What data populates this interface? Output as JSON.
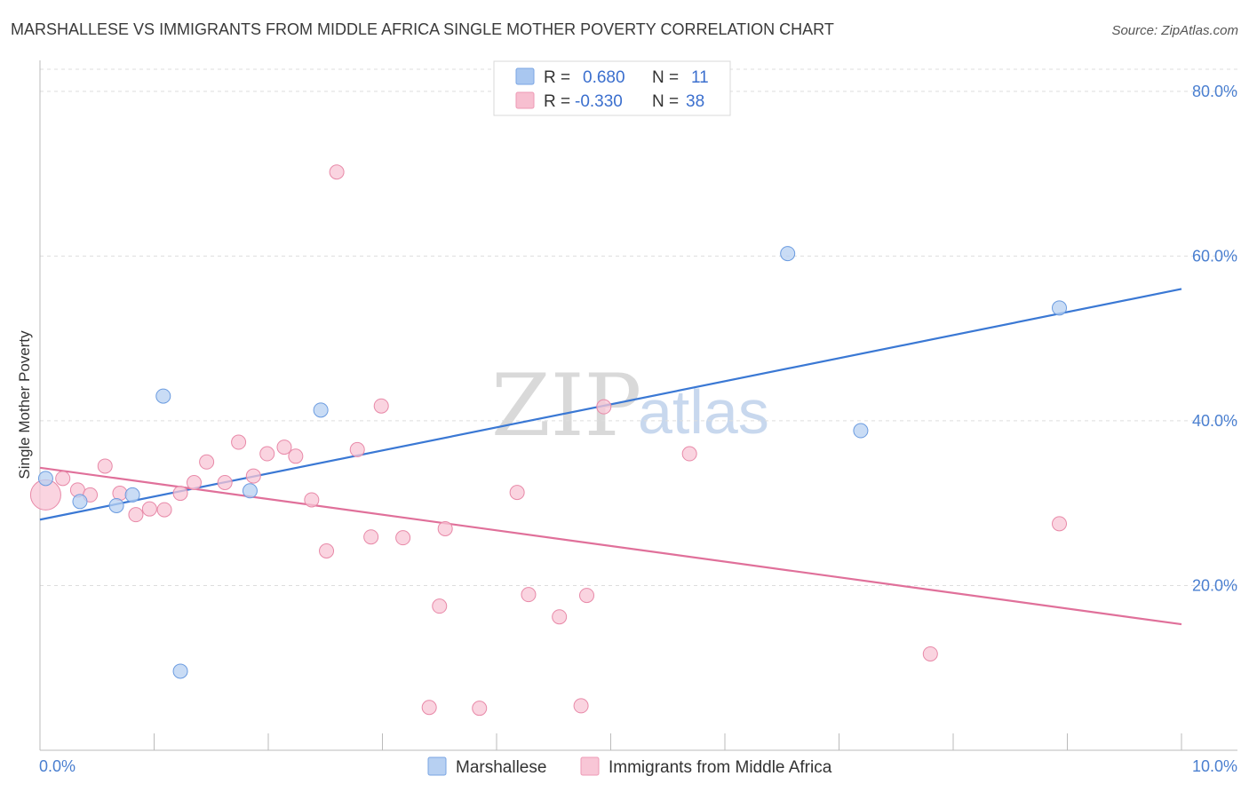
{
  "header": {
    "title": "MARSHALLESE VS IMMIGRANTS FROM MIDDLE AFRICA SINGLE MOTHER POVERTY CORRELATION CHART",
    "source": "Source: ZipAtlas.com"
  },
  "watermark": {
    "zip": "ZIP",
    "atlas": "atlas"
  },
  "legend_top": {
    "rows": [
      {
        "r_label": "R = ",
        "r_value": "0.680",
        "n_label": "N = ",
        "n_value": "11",
        "color": "#a9c7f0"
      },
      {
        "r_label": "R = ",
        "r_value": "-0.330",
        "n_label": "N = ",
        "n_value": "38",
        "color": "#f7bfd0"
      }
    ]
  },
  "chart_data": {
    "type": "scatter",
    "title": "MARSHALLESE VS IMMIGRANTS FROM MIDDLE AFRICA SINGLE MOTHER POVERTY CORRELATION CHART",
    "xlabel": "",
    "ylabel": "Single Mother Poverty",
    "xlim": [
      0,
      10
    ],
    "ylim": [
      0,
      83
    ],
    "x_tick_labels": [
      "0.0%",
      "10.0%"
    ],
    "y_ticks": [
      20,
      40,
      60,
      80
    ],
    "y_tick_labels": [
      "20.0%",
      "40.0%",
      "60.0%",
      "80.0%"
    ],
    "grid": true,
    "legend_placement": "top-center",
    "series": [
      {
        "name": "Marshallese",
        "color": "#6a9be0",
        "fill": "#b7d0f2",
        "trend": {
          "x": [
            0,
            10
          ],
          "y": [
            28.0,
            56.0
          ],
          "color": "#3a78d4"
        },
        "points": [
          {
            "x": 0.05,
            "y": 33.0
          },
          {
            "x": 0.35,
            "y": 30.2
          },
          {
            "x": 0.67,
            "y": 29.7
          },
          {
            "x": 0.81,
            "y": 31.0
          },
          {
            "x": 1.08,
            "y": 43.0
          },
          {
            "x": 1.23,
            "y": 9.6
          },
          {
            "x": 1.84,
            "y": 31.5
          },
          {
            "x": 2.46,
            "y": 41.3
          },
          {
            "x": 6.55,
            "y": 60.3
          },
          {
            "x": 7.19,
            "y": 38.8
          },
          {
            "x": 8.93,
            "y": 53.7
          }
        ]
      },
      {
        "name": "Immigrants from Middle Africa",
        "color": "#e889a8",
        "fill": "#f8c6d6",
        "trend": {
          "x": [
            0,
            10
          ],
          "y": [
            34.3,
            15.3
          ],
          "color": "#e0709a"
        },
        "points": [
          {
            "x": 0.05,
            "y": 31.0,
            "large": true
          },
          {
            "x": 0.2,
            "y": 33.0
          },
          {
            "x": 0.33,
            "y": 31.6
          },
          {
            "x": 0.44,
            "y": 31.0
          },
          {
            "x": 0.57,
            "y": 34.5
          },
          {
            "x": 0.7,
            "y": 31.2
          },
          {
            "x": 0.84,
            "y": 28.6
          },
          {
            "x": 0.96,
            "y": 29.3
          },
          {
            "x": 1.09,
            "y": 29.2
          },
          {
            "x": 1.23,
            "y": 31.2
          },
          {
            "x": 1.35,
            "y": 32.5
          },
          {
            "x": 1.46,
            "y": 35.0
          },
          {
            "x": 1.62,
            "y": 32.5
          },
          {
            "x": 1.74,
            "y": 37.4
          },
          {
            "x": 1.87,
            "y": 33.3
          },
          {
            "x": 1.99,
            "y": 36.0
          },
          {
            "x": 2.14,
            "y": 36.8
          },
          {
            "x": 2.24,
            "y": 35.7
          },
          {
            "x": 2.38,
            "y": 30.4
          },
          {
            "x": 2.51,
            "y": 24.2
          },
          {
            "x": 2.6,
            "y": 70.2
          },
          {
            "x": 2.78,
            "y": 36.5
          },
          {
            "x": 2.9,
            "y": 25.9
          },
          {
            "x": 2.99,
            "y": 41.8
          },
          {
            "x": 3.18,
            "y": 25.8
          },
          {
            "x": 3.41,
            "y": 5.2
          },
          {
            "x": 3.5,
            "y": 17.5
          },
          {
            "x": 3.55,
            "y": 26.9
          },
          {
            "x": 3.85,
            "y": 5.1
          },
          {
            "x": 4.18,
            "y": 31.3
          },
          {
            "x": 4.28,
            "y": 18.9
          },
          {
            "x": 4.55,
            "y": 16.2
          },
          {
            "x": 4.74,
            "y": 5.4
          },
          {
            "x": 4.79,
            "y": 18.8
          },
          {
            "x": 4.94,
            "y": 41.7
          },
          {
            "x": 5.69,
            "y": 36.0
          },
          {
            "x": 7.8,
            "y": 11.7
          },
          {
            "x": 8.93,
            "y": 27.5
          }
        ]
      }
    ]
  },
  "legend_bottom": {
    "items": [
      {
        "label": "Marshallese",
        "color": "#b7d0f2"
      },
      {
        "label": "Immigrants from Middle Africa",
        "color": "#f8c6d6"
      }
    ]
  }
}
